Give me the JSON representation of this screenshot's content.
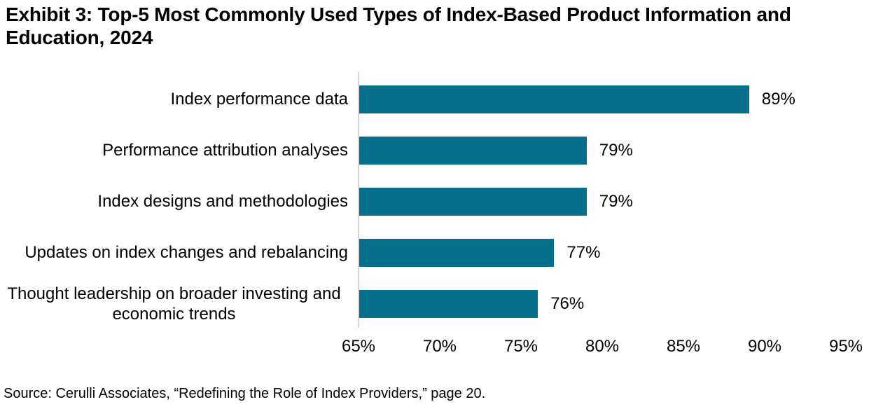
{
  "title": "Exhibit 3: Top-5 Most Commonly Used Types of Index-Based Product Information and Education, 2024",
  "source": "Source: Cerulli Associates, “Redefining the Role of Index Providers,” page 20.",
  "colors": {
    "bar": "#06708C",
    "axis_line": "#D9D9D9",
    "text": "#000000",
    "background": "#FFFFFF"
  },
  "chart_data": {
    "type": "bar",
    "orientation": "horizontal",
    "title": "Exhibit 3: Top-5 Most Commonly Used Types of Index-Based Product Information and Education, 2024",
    "categories": [
      "Index performance data",
      "Performance attribution analyses",
      "Index designs and methodologies",
      "Updates on index changes and rebalancing",
      "Thought leadership on broader investing and economic trends"
    ],
    "values": [
      89,
      79,
      79,
      77,
      76
    ],
    "value_labels": [
      "89%",
      "79%",
      "79%",
      "77%",
      "76%"
    ],
    "xlim": [
      65,
      95
    ],
    "x_ticks": [
      65,
      70,
      75,
      80,
      85,
      90,
      95
    ],
    "x_tick_labels": [
      "65%",
      "70%",
      "75%",
      "80%",
      "85%",
      "90%",
      "95%"
    ],
    "xlabel": "",
    "ylabel": "",
    "grid": false,
    "legend": false,
    "bars_start_at_axis_min": true
  }
}
